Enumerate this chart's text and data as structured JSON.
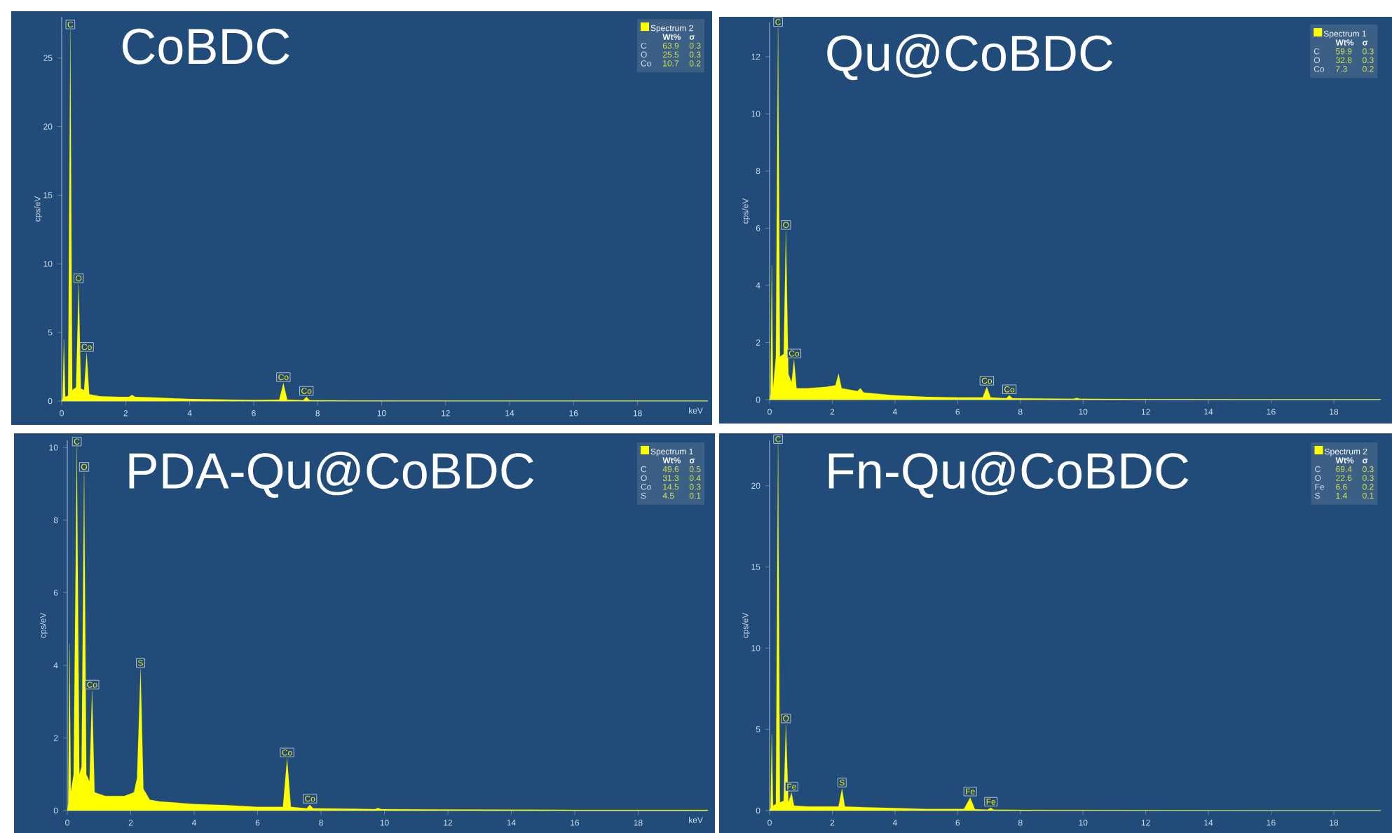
{
  "chart_data": [
    {
      "type": "area",
      "title": "CoBDC",
      "xlabel": "keV",
      "ylabel": "cps/eV",
      "xlim": [
        0,
        20.2
      ],
      "ylim": [
        0,
        28
      ],
      "xticks": [
        0,
        2,
        4,
        6,
        8,
        10,
        12,
        14,
        16,
        18
      ],
      "yticks": [
        0,
        5,
        10,
        15,
        20,
        25
      ],
      "legend": "top right",
      "series": [
        {
          "name": "Spectrum 2",
          "color": "#ffff00",
          "x": [
            0,
            0.03,
            0.07,
            0.11,
            0.2,
            0.27,
            0.33,
            0.45,
            0.53,
            0.6,
            0.7,
            0.78,
            0.86,
            1.2,
            1.8,
            2.1,
            2.2,
            2.3,
            3,
            4,
            5,
            6,
            6.8,
            6.93,
            7.05,
            7.55,
            7.65,
            7.75,
            9,
            12,
            16,
            20.2
          ],
          "values": [
            0,
            0.2,
            4.5,
            0.3,
            0.4,
            27,
            0.8,
            1.0,
            8.5,
            0.9,
            0.8,
            3.5,
            0.5,
            0.35,
            0.3,
            0.3,
            0.45,
            0.3,
            0.25,
            0.15,
            0.12,
            0.08,
            0.1,
            1.3,
            0.1,
            0.06,
            0.3,
            0.06,
            0.04,
            0.03,
            0.02,
            0.02
          ]
        }
      ],
      "annotations": [
        "Wt%",
        "σ",
        "C",
        "63.9",
        "0.3",
        "O",
        "25.5",
        "0.3",
        "Co",
        "10.7",
        "0.2",
        {
          "text": "C",
          "x": 0.27,
          "y": 27
        },
        {
          "text": "O",
          "x": 0.53,
          "y": 8.5
        },
        {
          "text": "Co",
          "x": 0.78,
          "y": 3.5
        },
        {
          "text": "Co",
          "x": 6.93,
          "y": 1.3
        },
        {
          "text": "Co",
          "x": 7.65,
          "y": 0.3
        }
      ]
    },
    {
      "type": "area",
      "title": "Qu@CoBDC",
      "ylabel": "cps/eV",
      "xlim": [
        0,
        19.5
      ],
      "ylim": [
        0,
        13.2
      ],
      "xticks": [
        0,
        2,
        4,
        6,
        8,
        10,
        12,
        14,
        16,
        18
      ],
      "yticks": [
        0,
        2,
        4,
        6,
        8,
        10,
        12
      ],
      "legend": "top right",
      "series": [
        {
          "name": "Spectrum 1",
          "color": "#ffff00",
          "x": [
            0,
            0.03,
            0.07,
            0.11,
            0.2,
            0.27,
            0.33,
            0.45,
            0.52,
            0.6,
            0.7,
            0.78,
            0.86,
            1.2,
            1.8,
            2.1,
            2.2,
            2.3,
            2.8,
            2.9,
            3.0,
            4,
            5,
            6,
            6.8,
            6.93,
            7.05,
            7.55,
            7.65,
            7.75,
            9.7,
            9.8,
            9.9,
            12,
            16,
            19.5
          ],
          "values": [
            0,
            0.2,
            4.7,
            0.4,
            1.5,
            13,
            1.5,
            1.6,
            5.9,
            0.9,
            0.6,
            1.4,
            0.4,
            0.4,
            0.45,
            0.5,
            0.9,
            0.4,
            0.3,
            0.4,
            0.25,
            0.15,
            0.1,
            0.08,
            0.08,
            0.45,
            0.08,
            0.05,
            0.15,
            0.05,
            0.03,
            0.06,
            0.03,
            0.02,
            0.01,
            0.01
          ]
        }
      ],
      "annotations": [
        "Wt%",
        "σ",
        "C",
        "59.9",
        "0.3",
        "O",
        "32.8",
        "0.3",
        "Co",
        "7.3",
        "0.2",
        {
          "text": "C",
          "x": 0.27,
          "y": 13
        },
        {
          "text": "O",
          "x": 0.52,
          "y": 5.9
        },
        {
          "text": "Co",
          "x": 0.78,
          "y": 1.4
        },
        {
          "text": "Co",
          "x": 6.93,
          "y": 0.45
        },
        {
          "text": "Co",
          "x": 7.65,
          "y": 0.15
        }
      ]
    },
    {
      "type": "area",
      "title": "PDA-Qu@CoBDC",
      "xlabel": "keV",
      "ylabel": "cps/eV",
      "xlim": [
        0,
        20.2
      ],
      "ylim": [
        0,
        10.2
      ],
      "xticks": [
        0,
        2,
        4,
        6,
        8,
        10,
        12,
        14,
        16,
        18
      ],
      "yticks": [
        0,
        2,
        4,
        6,
        8,
        10
      ],
      "legend": "top right",
      "series": [
        {
          "name": "Spectrum 1",
          "color": "#ffff00",
          "x": [
            0,
            0.03,
            0.07,
            0.11,
            0.2,
            0.3,
            0.38,
            0.45,
            0.53,
            0.6,
            0.7,
            0.78,
            0.86,
            1.2,
            1.8,
            2.1,
            2.2,
            2.31,
            2.4,
            2.6,
            2.9,
            4,
            5,
            6,
            6.8,
            6.93,
            7.05,
            7.55,
            7.65,
            7.75,
            9.7,
            9.8,
            9.9,
            12,
            16,
            20.2
          ],
          "values": [
            0,
            0.2,
            4.6,
            0.5,
            1.0,
            10.0,
            1.0,
            1.2,
            9.3,
            1.0,
            0.8,
            3.3,
            0.5,
            0.4,
            0.4,
            0.5,
            0.9,
            3.9,
            0.6,
            0.3,
            0.25,
            0.18,
            0.15,
            0.1,
            0.1,
            1.43,
            0.1,
            0.06,
            0.16,
            0.06,
            0.04,
            0.07,
            0.04,
            0.03,
            0.02,
            0.02
          ]
        }
      ],
      "annotations": [
        "Wt%",
        "σ",
        "C",
        "49.6",
        "0.5",
        "O",
        "31.3",
        "0.4",
        "Co",
        "14.5",
        "0.3",
        "S",
        "4.5",
        "0.1",
        {
          "text": "C",
          "x": 0.3,
          "y": 10.0
        },
        {
          "text": "O",
          "x": 0.53,
          "y": 9.3
        },
        {
          "text": "Co",
          "x": 0.78,
          "y": 3.3
        },
        {
          "text": "S",
          "x": 2.31,
          "y": 3.9
        },
        {
          "text": "Co",
          "x": 6.93,
          "y": 1.43
        },
        {
          "text": "Co",
          "x": 7.65,
          "y": 0.16
        }
      ]
    },
    {
      "type": "area",
      "title": "Fn-Qu@CoBDC",
      "ylabel": "cps/eV",
      "xlim": [
        0,
        19.5
      ],
      "ylim": [
        0,
        22.8
      ],
      "xticks": [
        0,
        2,
        4,
        6,
        8,
        10,
        12,
        14,
        16,
        18
      ],
      "yticks": [
        0,
        5,
        10,
        15,
        20
      ],
      "legend": "top right",
      "series": [
        {
          "name": "Spectrum 2",
          "color": "#ffff00",
          "x": [
            0,
            0.03,
            0.07,
            0.11,
            0.2,
            0.27,
            0.33,
            0.45,
            0.52,
            0.6,
            0.7,
            0.78,
            1.2,
            2.2,
            2.31,
            2.4,
            3,
            4,
            5,
            6.2,
            6.4,
            6.55,
            6.95,
            7.06,
            7.15,
            9,
            12,
            16,
            19.5
          ],
          "values": [
            0,
            0.2,
            4.7,
            0.3,
            0.4,
            22.5,
            0.5,
            0.6,
            5.3,
            0.5,
            1.1,
            0.3,
            0.25,
            0.25,
            1.35,
            0.25,
            0.2,
            0.15,
            0.1,
            0.1,
            0.8,
            0.08,
            0.05,
            0.17,
            0.05,
            0.03,
            0.02,
            0.01,
            0.01
          ]
        }
      ],
      "annotations": [
        "Wt%",
        "σ",
        "C",
        "69.4",
        "0.3",
        "O",
        "22.6",
        "0.3",
        "Fe",
        "6.6",
        "0.2",
        "S",
        "1.4",
        "0.1",
        {
          "text": "C",
          "x": 0.27,
          "y": 22.5
        },
        {
          "text": "O",
          "x": 0.52,
          "y": 5.3
        },
        {
          "text": "Fe",
          "x": 0.7,
          "y": 1.1
        },
        {
          "text": "S",
          "x": 2.31,
          "y": 1.35
        },
        {
          "text": "Fe",
          "x": 6.4,
          "y": 0.8
        },
        {
          "text": "Fe",
          "x": 7.06,
          "y": 0.17
        }
      ]
    }
  ]
}
